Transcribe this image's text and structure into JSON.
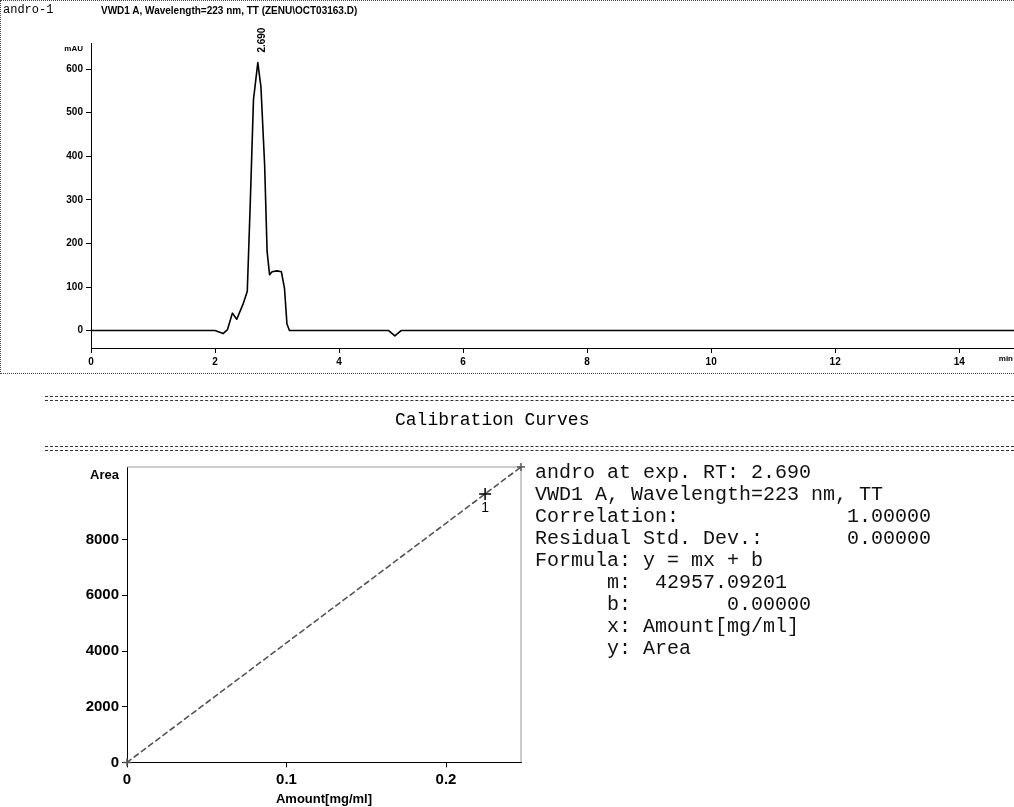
{
  "chart_data": [
    {
      "type": "line",
      "title": "andro-1",
      "subtitle": "VWD1 A, Wavelength=223 nm, TT (ZENU\\OCT03163.D)",
      "xlabel": "min",
      "ylabel": "mAU",
      "x": [
        0,
        1,
        2,
        2.13,
        2.2,
        2.28,
        2.35,
        2.45,
        2.52,
        2.57,
        2.62,
        2.69,
        2.74,
        2.77,
        2.8,
        2.84,
        2.88,
        2.92,
        3.0,
        3.07,
        3.12,
        3.16,
        3.2,
        4,
        4.8,
        4.9,
        5.0,
        6,
        8,
        10,
        12,
        14,
        14.9
      ],
      "series": [
        {
          "color": "#000000",
          "values": [
            0,
            0,
            0,
            -7,
            2,
            40,
            26,
            60,
            90,
            300,
            530,
            615,
            560,
            470,
            380,
            181,
            128,
            135,
            137,
            135,
            97,
            15,
            0,
            0,
            0,
            -12,
            0,
            0,
            0,
            0,
            0,
            0,
            0
          ]
        }
      ],
      "xlim": [
        0,
        14.9
      ],
      "ylim": [
        -40,
        660
      ],
      "xticks": [
        0,
        2,
        4,
        6,
        8,
        10,
        12,
        14
      ],
      "yticks": [
        0,
        100,
        200,
        300,
        400,
        500,
        600
      ],
      "grid": false,
      "legend": false,
      "marker": "none",
      "annotations": [
        {
          "text": "2.690",
          "x": 2.69,
          "y": 615
        }
      ]
    },
    {
      "type": "scatter",
      "title": "Calibration Curves",
      "xlabel": "Amount[mg/ml]",
      "ylabel": "Area",
      "series": [
        {
          "color": "#000000",
          "x": [
            0.2245
          ],
          "values": [
            9640
          ]
        },
        {
          "type": "line",
          "color": "#555555",
          "x": [
            0,
            0.247
          ],
          "values": [
            0,
            10610
          ],
          "line_style": "dashed"
        }
      ],
      "xlim": [
        0,
        0.247
      ],
      "ylim": [
        0,
        10610
      ],
      "xticks": [
        0,
        0.1,
        0.2
      ],
      "yticks": [
        0,
        2000,
        4000,
        6000,
        8000
      ],
      "grid": false,
      "legend": false,
      "marker": "cross",
      "annotations": [
        {
          "text": "1",
          "x": 0.2245,
          "y": 9640
        }
      ]
    },
    {
      "type": "other",
      "annotations": [
        "andro at exp. RT: 2.690",
        "VWD1 A, Wavelength=223 nm, TT",
        "Correlation:              1.00000",
        "Residual Std. Dev.:       0.00000",
        "Formula: y = mx + b",
        "      m:  42957.09201",
        "      b:        0.00000",
        "      x: Amount[mg/ml]",
        "      y: Area"
      ]
    }
  ]
}
